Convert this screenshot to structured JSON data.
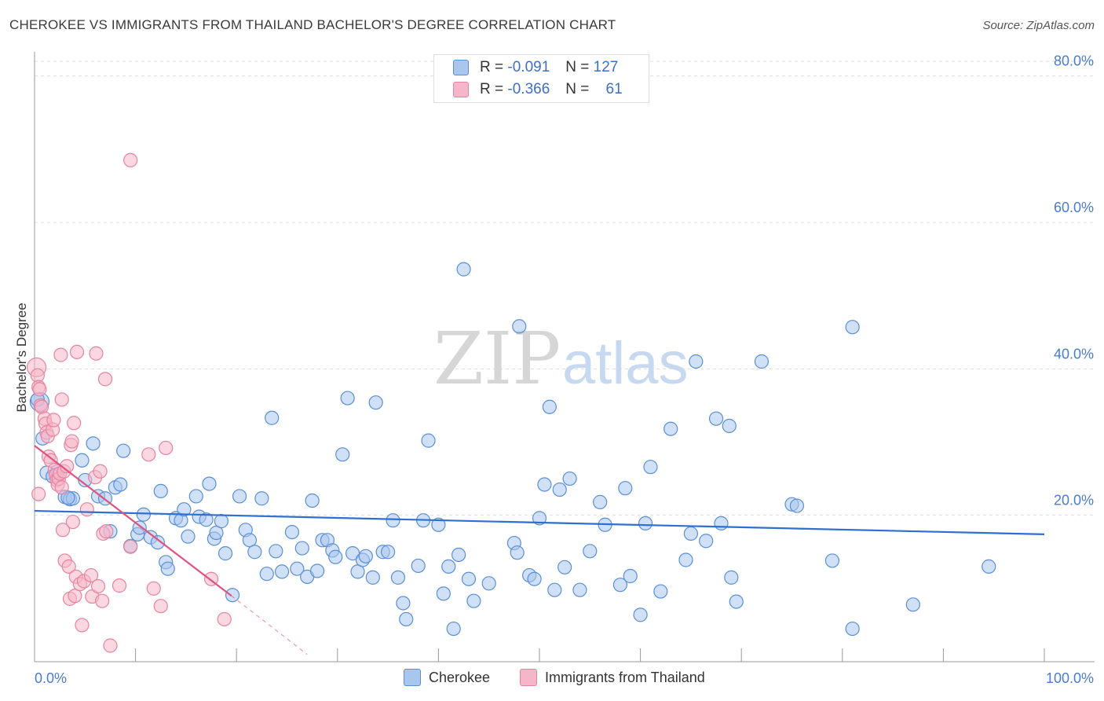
{
  "header": {
    "title": "CHEROKEE VS IMMIGRANTS FROM THAILAND BACHELOR'S DEGREE CORRELATION CHART",
    "source": "Source: ZipAtlas.com"
  },
  "watermark": {
    "part1": "ZIP",
    "part2": "atlas"
  },
  "colors": {
    "cherokee_fill": "#a9c6ee",
    "cherokee_stroke": "#5a8fd8",
    "cherokee_line": "#2f6fd0",
    "thai_fill": "#f5b6c9",
    "thai_stroke": "#e8839f",
    "thai_line": "#e0527f",
    "tick_text": "#4a7bd0",
    "grid": "#dddddd"
  },
  "legend": {
    "rows": [
      {
        "r_label": "R =",
        "r_value": "-0.091",
        "n_label": "N =",
        "n_value": "127"
      },
      {
        "r_label": "R =",
        "r_value": "-0.366",
        "n_label": "N =",
        "n_value": "61"
      }
    ]
  },
  "chart_data": {
    "type": "scatter",
    "title": "CHEROKEE VS IMMIGRANTS FROM THAILAND BACHELOR'S DEGREE CORRELATION CHART",
    "xlabel": "",
    "ylabel": "Bachelor's Degree",
    "xlim": [
      0,
      100
    ],
    "ylim": [
      0,
      82
    ],
    "x_tick_labels": [
      "0.0%",
      "100.0%"
    ],
    "y_ticks": [
      20,
      40,
      60,
      80
    ],
    "y_tick_labels": [
      "20.0%",
      "40.0%",
      "60.0%",
      "80.0%"
    ],
    "grid": true,
    "legend_position": "top-center",
    "series": [
      {
        "name": "Cherokee",
        "r": -0.091,
        "n": 127,
        "trend": {
          "x": [
            0,
            100
          ],
          "y": [
            20.6,
            17.4
          ]
        },
        "points": [
          [
            0.5,
            35.5
          ],
          [
            0.8,
            30.5
          ],
          [
            1.2,
            25.8
          ],
          [
            1.8,
            25.3
          ],
          [
            2.3,
            26.0
          ],
          [
            3.0,
            22.5
          ],
          [
            3.5,
            22.2
          ],
          [
            3.8,
            22.3
          ],
          [
            4.7,
            27.5
          ],
          [
            5.0,
            24.8
          ],
          [
            5.8,
            29.8
          ],
          [
            6.3,
            22.6
          ],
          [
            7.0,
            22.3
          ],
          [
            7.5,
            17.8
          ],
          [
            8.0,
            23.8
          ],
          [
            8.5,
            24.2
          ],
          [
            8.8,
            28.8
          ],
          [
            9.5,
            15.8
          ],
          [
            10.2,
            17.4
          ],
          [
            10.4,
            18.3
          ],
          [
            10.8,
            20.1
          ],
          [
            11.5,
            17.0
          ],
          [
            12.2,
            16.3
          ],
          [
            12.5,
            23.3
          ],
          [
            13.0,
            13.6
          ],
          [
            13.2,
            12.7
          ],
          [
            14.0,
            19.6
          ],
          [
            14.5,
            19.3
          ],
          [
            14.8,
            20.8
          ],
          [
            15.2,
            17.1
          ],
          [
            16.0,
            22.6
          ],
          [
            16.3,
            19.8
          ],
          [
            17.0,
            19.4
          ],
          [
            17.3,
            24.3
          ],
          [
            17.8,
            16.8
          ],
          [
            18.0,
            17.6
          ],
          [
            18.5,
            19.2
          ],
          [
            18.9,
            14.8
          ],
          [
            19.6,
            9.1
          ],
          [
            20.3,
            22.6
          ],
          [
            20.9,
            18.0
          ],
          [
            21.3,
            16.6
          ],
          [
            21.8,
            15.0
          ],
          [
            22.5,
            22.3
          ],
          [
            23.0,
            12.0
          ],
          [
            23.5,
            33.3
          ],
          [
            23.9,
            15.1
          ],
          [
            24.5,
            12.3
          ],
          [
            25.5,
            17.7
          ],
          [
            26.0,
            12.7
          ],
          [
            26.5,
            15.5
          ],
          [
            27.0,
            11.6
          ],
          [
            27.5,
            22.0
          ],
          [
            28.0,
            12.4
          ],
          [
            28.5,
            16.6
          ],
          [
            29.0,
            16.6
          ],
          [
            29.5,
            15.2
          ],
          [
            29.8,
            14.3
          ],
          [
            30.5,
            28.3
          ],
          [
            31.0,
            36.0
          ],
          [
            31.5,
            14.8
          ],
          [
            32.0,
            12.3
          ],
          [
            32.5,
            13.9
          ],
          [
            32.8,
            14.4
          ],
          [
            33.5,
            11.5
          ],
          [
            33.8,
            35.4
          ],
          [
            34.5,
            15.0
          ],
          [
            35.0,
            15.0
          ],
          [
            35.5,
            19.3
          ],
          [
            36.0,
            11.5
          ],
          [
            36.5,
            8.0
          ],
          [
            36.8,
            5.8
          ],
          [
            38.0,
            13.1
          ],
          [
            38.5,
            19.3
          ],
          [
            39.0,
            30.2
          ],
          [
            40.0,
            18.7
          ],
          [
            40.5,
            9.3
          ],
          [
            41.0,
            13.0
          ],
          [
            41.5,
            4.5
          ],
          [
            42.0,
            14.6
          ],
          [
            42.5,
            53.6
          ],
          [
            43.0,
            11.3
          ],
          [
            43.5,
            8.3
          ],
          [
            45.0,
            10.7
          ],
          [
            47.5,
            16.2
          ],
          [
            47.8,
            14.9
          ],
          [
            48.0,
            45.8
          ],
          [
            49.0,
            11.8
          ],
          [
            49.5,
            11.3
          ],
          [
            50.0,
            19.6
          ],
          [
            50.5,
            24.2
          ],
          [
            51.0,
            34.8
          ],
          [
            51.5,
            9.8
          ],
          [
            52.0,
            23.5
          ],
          [
            52.5,
            12.9
          ],
          [
            53.0,
            25.0
          ],
          [
            54.0,
            9.8
          ],
          [
            55.0,
            15.1
          ],
          [
            56.0,
            21.8
          ],
          [
            56.5,
            18.7
          ],
          [
            58.0,
            10.5
          ],
          [
            58.5,
            23.7
          ],
          [
            59.0,
            11.7
          ],
          [
            60.0,
            6.4
          ],
          [
            60.5,
            18.9
          ],
          [
            61.0,
            26.6
          ],
          [
            62.0,
            9.6
          ],
          [
            63.0,
            31.8
          ],
          [
            64.5,
            13.9
          ],
          [
            65.0,
            17.5
          ],
          [
            65.5,
            41.0
          ],
          [
            66.5,
            16.5
          ],
          [
            67.5,
            33.2
          ],
          [
            68.0,
            18.9
          ],
          [
            68.8,
            32.2
          ],
          [
            69.0,
            11.5
          ],
          [
            69.5,
            8.2
          ],
          [
            72.0,
            41.0
          ],
          [
            75.0,
            21.5
          ],
          [
            75.5,
            21.3
          ],
          [
            79.0,
            13.8
          ],
          [
            81.0,
            45.7
          ],
          [
            81.0,
            4.5
          ],
          [
            87.0,
            7.8
          ],
          [
            94.5,
            13.0
          ],
          [
            0.3,
            35.8
          ],
          [
            3.3,
            22.4
          ]
        ]
      },
      {
        "name": "Immigrants from Thailand",
        "r": -0.366,
        "n": 61,
        "trend": {
          "x": [
            0,
            19.5
          ],
          "y": [
            29.5,
            9.0
          ]
        },
        "trend_extension": {
          "x": [
            19.5,
            27
          ],
          "y": [
            9.0,
            1.0
          ]
        },
        "points": [
          [
            0.2,
            40.2
          ],
          [
            0.3,
            39.1
          ],
          [
            0.4,
            37.5
          ],
          [
            0.5,
            37.2
          ],
          [
            0.6,
            35.0
          ],
          [
            0.7,
            34.8
          ],
          [
            1.0,
            33.2
          ],
          [
            1.1,
            32.5
          ],
          [
            1.2,
            31.3
          ],
          [
            1.3,
            30.8
          ],
          [
            1.4,
            28.0
          ],
          [
            1.6,
            27.5
          ],
          [
            1.8,
            31.7
          ],
          [
            1.9,
            33.0
          ],
          [
            2.0,
            26.2
          ],
          [
            2.1,
            25.5
          ],
          [
            2.2,
            24.8
          ],
          [
            2.3,
            24.2
          ],
          [
            2.4,
            25.0
          ],
          [
            2.5,
            25.7
          ],
          [
            2.7,
            23.8
          ],
          [
            2.8,
            18.0
          ],
          [
            2.9,
            26.0
          ],
          [
            2.6,
            41.9
          ],
          [
            2.7,
            35.8
          ],
          [
            3.0,
            13.8
          ],
          [
            3.2,
            26.7
          ],
          [
            3.4,
            13.0
          ],
          [
            3.5,
            8.6
          ],
          [
            3.6,
            29.6
          ],
          [
            3.7,
            30.1
          ],
          [
            3.8,
            19.1
          ],
          [
            3.9,
            32.6
          ],
          [
            4.0,
            9.0
          ],
          [
            4.1,
            11.6
          ],
          [
            4.2,
            42.3
          ],
          [
            4.5,
            10.6
          ],
          [
            4.7,
            5.0
          ],
          [
            4.9,
            11.0
          ],
          [
            5.2,
            20.8
          ],
          [
            5.6,
            11.8
          ],
          [
            5.7,
            8.9
          ],
          [
            6.0,
            25.2
          ],
          [
            6.1,
            42.1
          ],
          [
            6.3,
            10.3
          ],
          [
            6.5,
            26.0
          ],
          [
            6.7,
            8.3
          ],
          [
            6.8,
            17.5
          ],
          [
            7.0,
            38.6
          ],
          [
            7.1,
            17.8
          ],
          [
            7.5,
            2.2
          ],
          [
            8.4,
            10.4
          ],
          [
            9.5,
            15.7
          ],
          [
            9.5,
            68.5
          ],
          [
            11.3,
            28.3
          ],
          [
            11.8,
            10.0
          ],
          [
            12.5,
            7.6
          ],
          [
            13.0,
            29.2
          ],
          [
            17.5,
            11.3
          ],
          [
            18.8,
            5.8
          ],
          [
            0.4,
            22.9
          ]
        ]
      }
    ]
  },
  "bottom_legend": {
    "items": [
      "Cherokee",
      "Immigrants from Thailand"
    ]
  }
}
